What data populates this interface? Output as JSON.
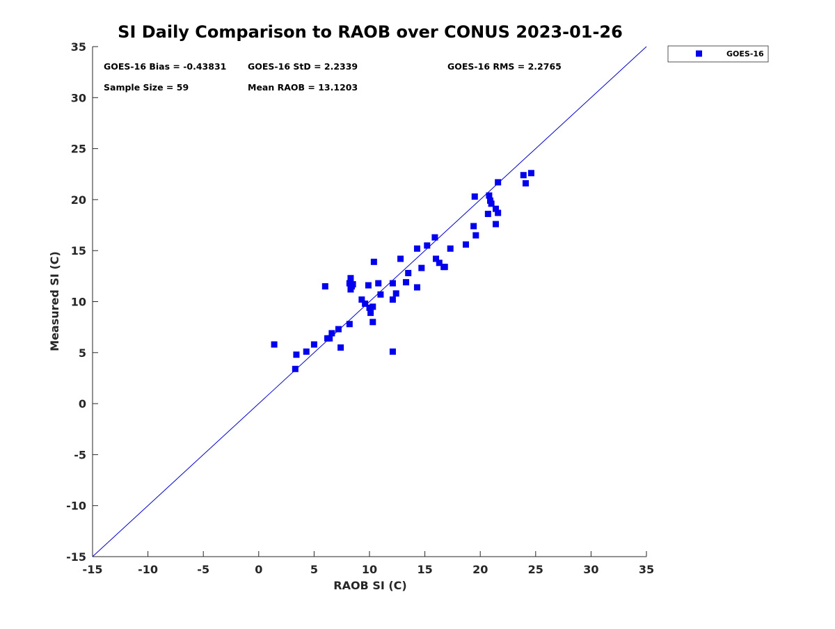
{
  "chart_data": {
    "type": "scatter",
    "title": "SI Daily Comparison to RAOB over CONUS 2023-01-26",
    "xlabel": "RAOB SI (C)",
    "ylabel": "Measured SI (C)",
    "xlim": [
      -15,
      35
    ],
    "ylim": [
      -15,
      35
    ],
    "xticks": [
      "-15",
      "-10",
      "-5",
      "0",
      "5",
      "10",
      "15",
      "20",
      "25",
      "30",
      "35"
    ],
    "yticks": [
      "-15",
      "-10",
      "-5",
      "0",
      "5",
      "10",
      "15",
      "20",
      "25",
      "30",
      "35"
    ],
    "grid": false,
    "legend_position": "outside-top-right",
    "reference_line": {
      "label": "one-to-one",
      "color": "#0000cc",
      "from": [
        -15,
        -15
      ],
      "to": [
        35,
        35
      ]
    },
    "series": [
      {
        "name": "GOES-16",
        "color": "#0000ee",
        "marker": "square",
        "points": [
          [
            1.4,
            5.8
          ],
          [
            3.3,
            3.4
          ],
          [
            3.4,
            4.8
          ],
          [
            4.3,
            5.1
          ],
          [
            5.0,
            5.8
          ],
          [
            6.0,
            11.5
          ],
          [
            6.2,
            6.4
          ],
          [
            6.4,
            6.4
          ],
          [
            6.6,
            6.9
          ],
          [
            7.2,
            7.3
          ],
          [
            7.4,
            5.5
          ],
          [
            8.2,
            7.8
          ],
          [
            8.2,
            11.8
          ],
          [
            8.3,
            12.3
          ],
          [
            8.3,
            11.2
          ],
          [
            8.4,
            11.5
          ],
          [
            8.5,
            11.7
          ],
          [
            9.3,
            10.2
          ],
          [
            9.6,
            9.8
          ],
          [
            9.9,
            11.6
          ],
          [
            10.0,
            9.4
          ],
          [
            10.1,
            8.9
          ],
          [
            10.3,
            9.5
          ],
          [
            10.3,
            8.0
          ],
          [
            10.4,
            13.9
          ],
          [
            10.8,
            11.8
          ],
          [
            11.0,
            10.7
          ],
          [
            12.1,
            11.8
          ],
          [
            12.1,
            10.2
          ],
          [
            12.1,
            5.1
          ],
          [
            12.4,
            10.8
          ],
          [
            12.8,
            14.2
          ],
          [
            13.3,
            11.9
          ],
          [
            13.5,
            12.8
          ],
          [
            14.3,
            15.2
          ],
          [
            14.3,
            11.4
          ],
          [
            14.7,
            13.3
          ],
          [
            15.2,
            15.5
          ],
          [
            15.9,
            16.3
          ],
          [
            16.0,
            14.2
          ],
          [
            16.3,
            13.8
          ],
          [
            16.7,
            13.4
          ],
          [
            16.8,
            13.4
          ],
          [
            17.3,
            15.2
          ],
          [
            18.7,
            15.6
          ],
          [
            19.4,
            17.4
          ],
          [
            19.5,
            20.3
          ],
          [
            19.6,
            16.5
          ],
          [
            20.7,
            18.6
          ],
          [
            20.8,
            20.4
          ],
          [
            20.9,
            19.9
          ],
          [
            21.0,
            19.6
          ],
          [
            21.4,
            19.1
          ],
          [
            21.4,
            17.6
          ],
          [
            21.6,
            18.7
          ],
          [
            21.6,
            21.7
          ],
          [
            23.9,
            22.4
          ],
          [
            24.1,
            21.6
          ],
          [
            24.6,
            22.6
          ]
        ]
      }
    ],
    "annotations": [
      "GOES-16 Bias = -0.43831",
      "GOES-16 StD = 2.2339",
      "GOES-16 RMS = 2.2765",
      "Sample Size = 59",
      "Mean RAOB = 13.1203"
    ]
  }
}
